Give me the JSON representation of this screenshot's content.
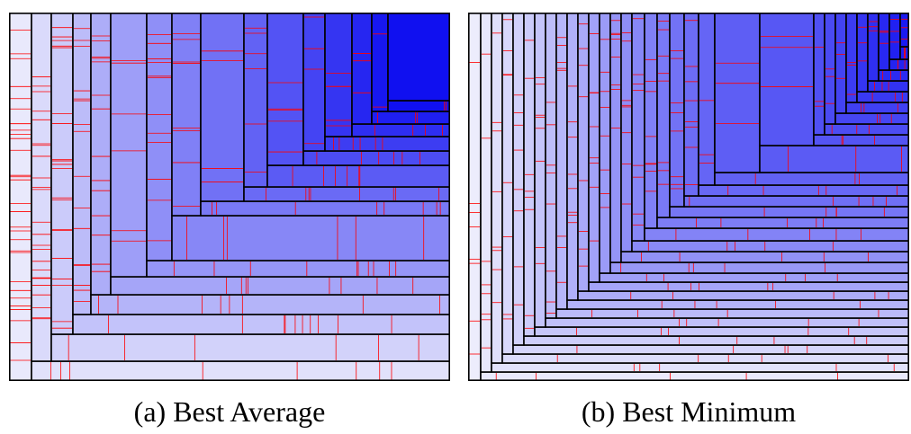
{
  "captions": {
    "a": "(a) Best Average",
    "b": "(b) Best Minimum"
  },
  "colors": {
    "light": "#f0f0fc",
    "dark": "#1010f0",
    "split_line": "#ff0000",
    "border": "#000000"
  },
  "treemaps": [
    {
      "key": "a",
      "name": "Best Average treemap",
      "scheme": "corner-spiral-a"
    },
    {
      "key": "b",
      "name": "Best Minimum treemap",
      "scheme": "corner-spiral-b"
    }
  ]
}
